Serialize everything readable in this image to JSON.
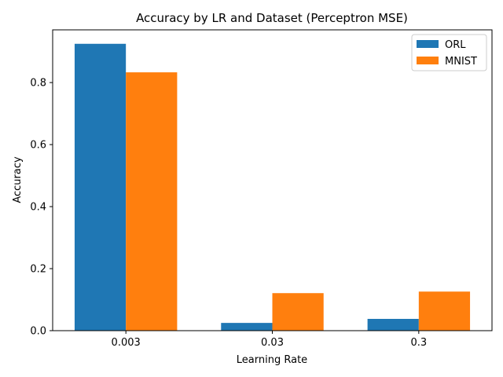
{
  "chart_data": {
    "type": "bar",
    "title": "Accuracy by LR and Dataset (Perceptron MSE)",
    "xlabel": "Learning Rate",
    "ylabel": "Accuracy",
    "categories": [
      "0.003",
      "0.03",
      "0.3"
    ],
    "series": [
      {
        "name": "ORL",
        "color": "#1f77b4",
        "values": [
          0.925,
          0.025,
          0.038
        ]
      },
      {
        "name": "MNIST",
        "color": "#ff7f0e",
        "values": [
          0.833,
          0.121,
          0.126
        ]
      }
    ],
    "ylim": [
      0,
      0.97
    ],
    "yticks": [
      "0.0",
      "0.2",
      "0.4",
      "0.6",
      "0.8"
    ],
    "legend_position": "top-right",
    "grid": false
  }
}
